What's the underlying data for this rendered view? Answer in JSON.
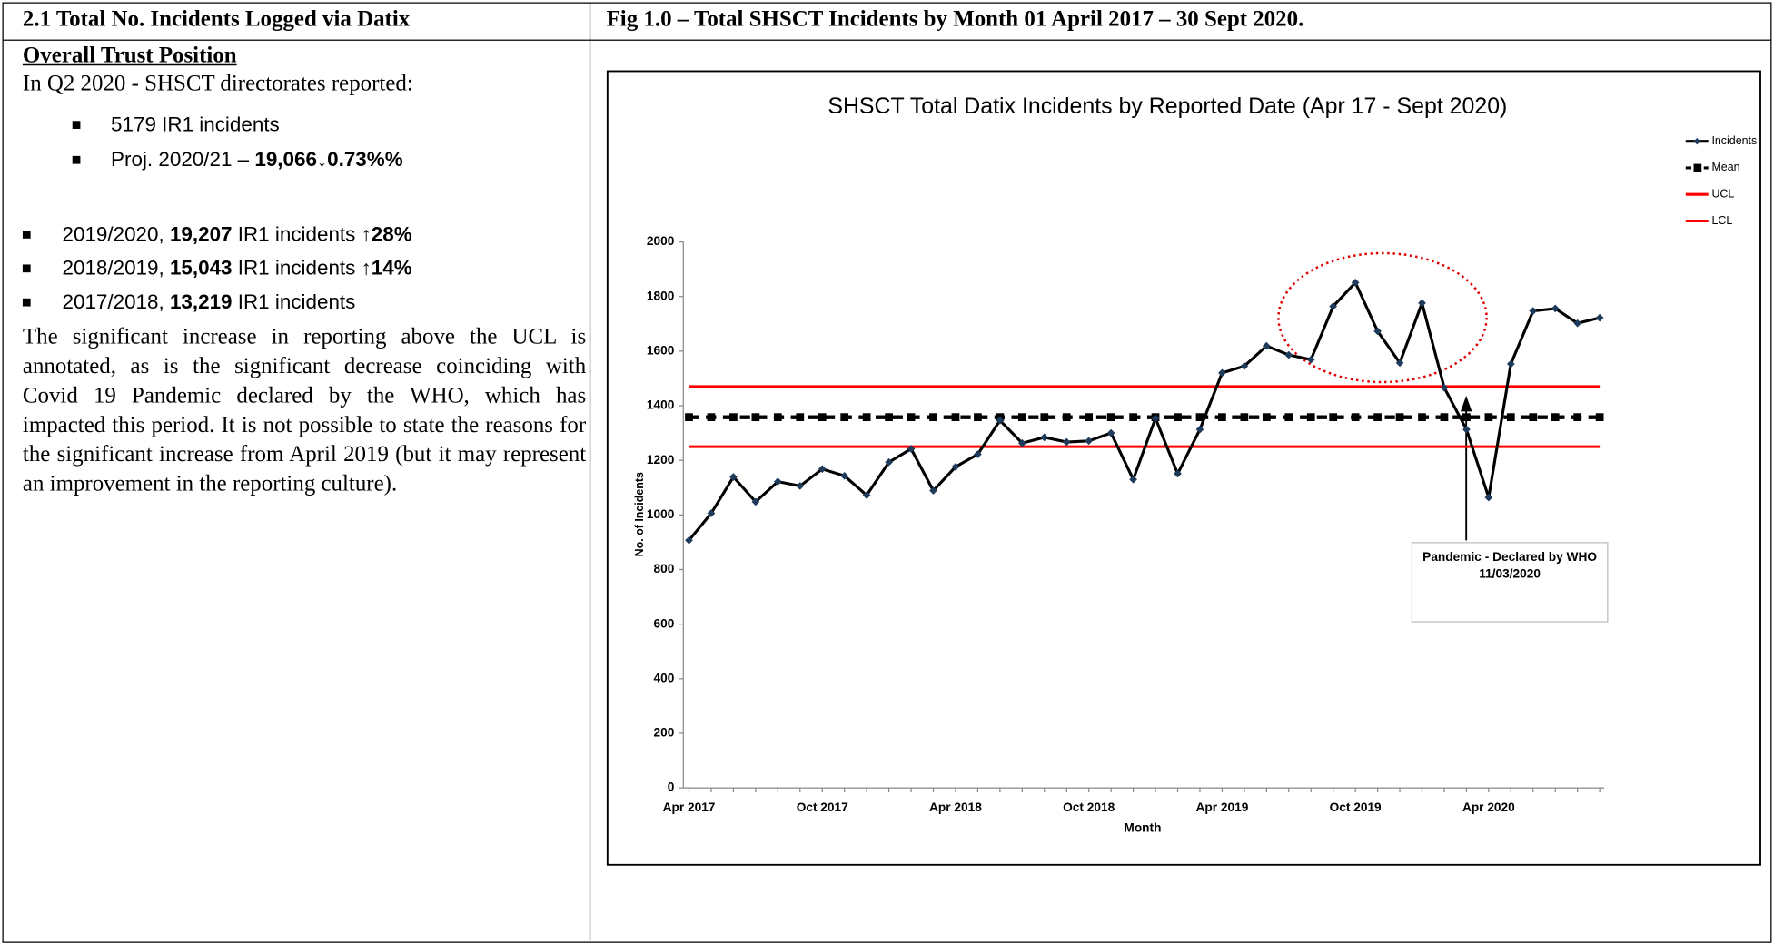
{
  "header": {
    "left": "2.1 Total No. Incidents Logged via Datix",
    "right": "Fig 1.0 – Total SHSCT Incidents by Month 01 April 2017 – 30 Sept 2020."
  },
  "left": {
    "subtitle": "Overall Trust Position",
    "intro": "In Q2 2020 - SHSCT directorates reported:",
    "bullets": [
      [
        "5179 IR1 incidents"
      ],
      [
        "Proj. 2020/21 – ",
        "19,066↓0.73%%"
      ]
    ],
    "years": [
      [
        "2019/2020, ",
        "19,207",
        " IR1 incidents ",
        "↑28%"
      ],
      [
        "2018/2019, ",
        "15,043",
        " IR1 incidents ",
        "↑14%"
      ],
      [
        "2017/2018, ",
        "13,219",
        " IR1 incidents"
      ]
    ],
    "paragraph": "The significant increase in reporting above the UCL is annotated, as is the significant decrease coinciding with Covid 19 Pandemic declared by the WHO, which has impacted this period.  It is not possible to state the reasons for the significant increase from April 2019 (but it may represent an improvement in the reporting culture)."
  },
  "chart_data": {
    "type": "line",
    "title": "SHSCT Total Datix Incidents by Reported Date (Apr 17 - Sept 2020)",
    "x_label": "Month",
    "y_label": "No. of Incidents",
    "annotation": "Pandemic - Declared by WHO 11/03/2020",
    "legend": "top-right",
    "categories": [
      "Apr 2017",
      null,
      null,
      null,
      null,
      null,
      "Oct 2017",
      null,
      null,
      null,
      null,
      null,
      "Apr 2018",
      null,
      null,
      null,
      null,
      null,
      "Oct 2018",
      null,
      null,
      null,
      null,
      null,
      "Apr 2019",
      null,
      null,
      null,
      null,
      null,
      "Oct 2019",
      null,
      null,
      null,
      null,
      null,
      "Apr 2020",
      null,
      null,
      null,
      null,
      null
    ],
    "series": [
      {
        "name": "Incidents",
        "color": "#000000",
        "marker": "diamond",
        "values": [
          907,
          1006,
          1139,
          1048,
          1122,
          1106,
          1168,
          1143,
          1072,
          1193,
          1242,
          1089,
          1176,
          1222,
          1346,
          1263,
          1284,
          1267,
          1271,
          1300,
          1130,
          1354,
          1151,
          1313,
          1520,
          1545,
          1619,
          1586,
          1569,
          1764,
          1851,
          1673,
          1557,
          1776,
          1466,
          1313,
          1064,
          1553,
          1747,
          1756,
          1702,
          1722
        ]
      },
      {
        "name": "Mean",
        "color": "#000000",
        "marker": "square",
        "dashed": true,
        "values": [
          1358,
          1358,
          1358,
          1358,
          1358,
          1358,
          1358,
          1358,
          1358,
          1358,
          1358,
          1358,
          1358,
          1358,
          1358,
          1358,
          1358,
          1358,
          1358,
          1358,
          1358,
          1358,
          1358,
          1358,
          1358,
          1358,
          1358,
          1358,
          1358,
          1358,
          1358,
          1358,
          1358,
          1358,
          1358,
          1358,
          1358,
          1358,
          1358,
          1358,
          1358,
          1358
        ]
      },
      {
        "name": "UCL",
        "color": "#ff0000",
        "values": [
          1470,
          1470,
          1470,
          1470,
          1470,
          1470,
          1470,
          1470,
          1470,
          1470,
          1470,
          1470,
          1470,
          1470,
          1470,
          1470,
          1470,
          1470,
          1470,
          1470,
          1470,
          1470,
          1470,
          1470,
          1470,
          1470,
          1470,
          1470,
          1470,
          1470,
          1470,
          1470,
          1470,
          1470,
          1470,
          1470,
          1470,
          1470,
          1470,
          1470,
          1470,
          1470
        ]
      },
      {
        "name": "LCL",
        "color": "#ff0000",
        "values": [
          1250,
          1250,
          1250,
          1250,
          1250,
          1250,
          1250,
          1250,
          1250,
          1250,
          1250,
          1250,
          1250,
          1250,
          1250,
          1250,
          1250,
          1250,
          1250,
          1250,
          1250,
          1250,
          1250,
          1250,
          1250,
          1250,
          1250,
          1250,
          1250,
          1250,
          1250,
          1250,
          1250,
          1250,
          1250,
          1250,
          1250,
          1250,
          1250,
          1250,
          1250,
          1250
        ]
      }
    ],
    "ylim": [
      0,
      2000
    ],
    "yticks": [
      0,
      200,
      400,
      600,
      800,
      1000,
      1200,
      1400,
      1600,
      1800,
      2000
    ]
  }
}
